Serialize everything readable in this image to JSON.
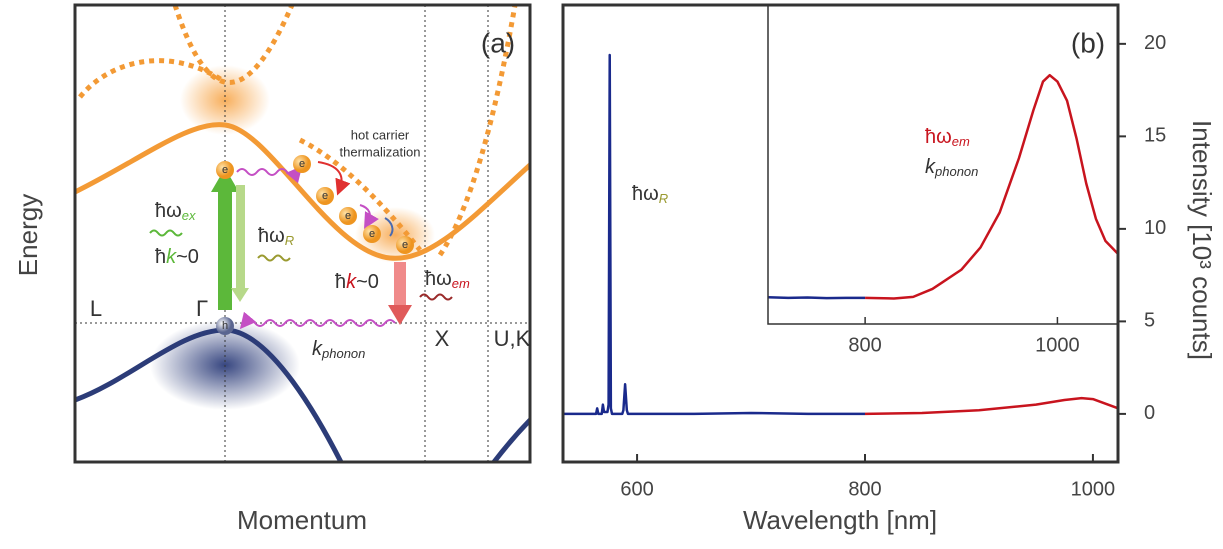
{
  "diagram": {
    "ylabel": "Energy",
    "xlabel": "Momentum",
    "panel_label": "(a)",
    "points": [
      "L",
      "Γ",
      "X",
      "U,K"
    ],
    "electron": "e",
    "hole": "h",
    "thermalization": [
      "hot carrier",
      "thermalization"
    ],
    "excitation": {
      "symbol": "ħω",
      "sub": "ex"
    },
    "raman": {
      "symbol": "ħω",
      "sub": "R"
    },
    "emission": {
      "symbol": "ħω",
      "sub": "em"
    },
    "momentum": {
      "symbol": "ħ",
      "k": "k",
      "rest": "~0"
    },
    "phonon": {
      "symbol": "k",
      "sub": "phonon"
    }
  },
  "chart_data": {
    "type": "line",
    "panel_label": "(b)",
    "xlabel": "Wavelength [nm]",
    "ylabel": "Intensity [10³ counts]",
    "xlim": [
      535,
      1022
    ],
    "ylim": [
      -2.6,
      22.1
    ],
    "xticks": [
      600,
      800,
      1000
    ],
    "yticks": [
      0,
      5,
      10,
      15,
      20
    ],
    "series": [
      {
        "color": "#1a2a8c",
        "x": [
          535,
          560,
          564,
          565,
          566,
          569,
          570,
          571,
          574,
          575,
          576,
          577,
          578,
          587,
          588,
          589.5,
          591,
          592,
          600,
          650,
          700,
          750,
          800
        ],
        "values": [
          0,
          0,
          0,
          0.3,
          0,
          0,
          0.5,
          0.1,
          0.1,
          0.5,
          19.4,
          0.3,
          0,
          0,
          0.2,
          1.6,
          0.2,
          0,
          0,
          0,
          0.05,
          0,
          0
        ]
      },
      {
        "color": "#c8141e",
        "x": [
          800,
          850,
          900,
          950,
          975,
          990,
          1000,
          1020,
          1022
        ],
        "values": [
          0,
          0.05,
          0.2,
          0.5,
          0.75,
          0.85,
          0.8,
          0.35,
          0.3
        ]
      }
    ],
    "inset": {
      "xlim": [
        699,
        1063
      ],
      "ylim": [
        0,
        100
      ],
      "xticks": [
        800,
        1000
      ],
      "series": [
        {
          "color": "#1a2a8c",
          "x": [
            699,
            720,
            740,
            760,
            780,
            800
          ],
          "values": [
            8.4,
            8.2,
            8.3,
            8.1,
            8.2,
            8.2
          ]
        },
        {
          "color": "#c8141e",
          "x": [
            800,
            830,
            850,
            870,
            880,
            900,
            920,
            940,
            960,
            975,
            985,
            992,
            1000,
            1010,
            1020,
            1030,
            1040,
            1050,
            1063
          ],
          "values": [
            8.2,
            8.0,
            8.5,
            11,
            13,
            17,
            24,
            35,
            52,
            67,
            76,
            78,
            76,
            70,
            58,
            44,
            33,
            26,
            22
          ]
        }
      ]
    }
  }
}
